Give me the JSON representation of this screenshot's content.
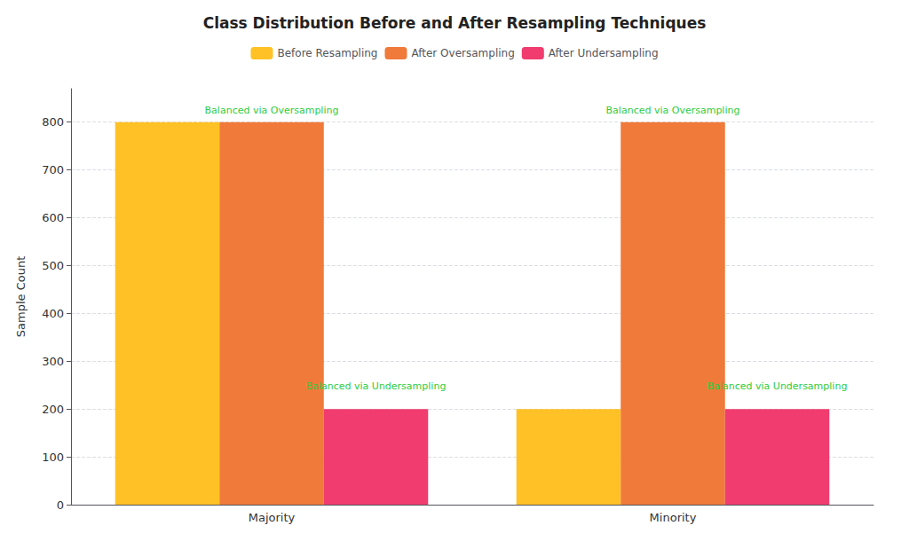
{
  "chart_data": {
    "type": "bar",
    "title": "Class Distribution Before and After Resampling Techniques",
    "categories": [
      "Majority",
      "Minority"
    ],
    "series": [
      {
        "name": "Before Resampling",
        "values": [
          800,
          200
        ],
        "color": "#FFC125"
      },
      {
        "name": "After Oversampling",
        "values": [
          800,
          800
        ],
        "color": "#F07A3A"
      },
      {
        "name": "After Undersampling",
        "values": [
          200,
          200
        ],
        "color": "#F03C6E"
      }
    ],
    "ylabel": "Sample Count",
    "ylim": [
      0,
      870
    ],
    "yticks": [
      0,
      100,
      200,
      300,
      400,
      500,
      600,
      700,
      800
    ],
    "grid": true,
    "legend": "top",
    "annotations": [
      {
        "text": "Balanced via Oversampling",
        "category": "Majority",
        "series": "After Oversampling",
        "y": 815,
        "color": "#2ECC40"
      },
      {
        "text": "Balanced via Undersampling",
        "category": "Majority",
        "series": "After Undersampling",
        "y": 238,
        "color": "#2ECC40"
      },
      {
        "text": "Balanced via Oversampling",
        "category": "Minority",
        "series": "After Oversampling",
        "y": 815,
        "color": "#2ECC40"
      },
      {
        "text": "Balanced via Undersampling",
        "category": "Minority",
        "series": "After Undersampling",
        "y": 238,
        "color": "#2ECC40"
      }
    ]
  }
}
